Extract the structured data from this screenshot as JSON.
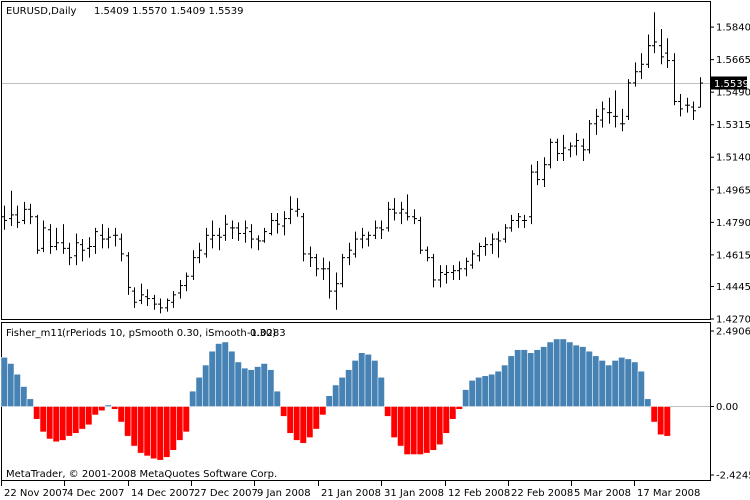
{
  "price_panel": {
    "symbol_label": "EURUSD,Daily",
    "ohlc_text": "1.5409 1.5570 1.5409 1.5539",
    "current_price_label": "1.5539"
  },
  "indicator_panel": {
    "title": "Fisher_m11",
    "params": "(rPeriods 10, pSmooth 0.30, iSmooth 0.30)",
    "value": "-1.0283"
  },
  "footer": {
    "copyright": "MetaTrader, © 2001-2008 MetaQuotes Software Corp."
  },
  "chart_data": [
    {
      "type": "ohlc",
      "symbol": "EURUSD",
      "timeframe": "Daily",
      "ylim": [
        1.427,
        1.5975
      ],
      "y_ticks": [
        "1.5840",
        "1.5665",
        "1.5490",
        "1.5315",
        "1.5140",
        "1.4965",
        "1.4790",
        "1.4615",
        "1.4445",
        "1.4270"
      ],
      "current_price": 1.5539,
      "colors": {
        "bars": "#000000",
        "current_price_line": "#c0c0c0"
      },
      "bars": [
        [
          1.482,
          1.488,
          1.475,
          1.48
        ],
        [
          1.481,
          1.496,
          1.477,
          1.483
        ],
        [
          1.483,
          1.488,
          1.476,
          1.479
        ],
        [
          1.48,
          1.49,
          1.478,
          1.486
        ],
        [
          1.486,
          1.489,
          1.478,
          1.482
        ],
        [
          1.482,
          1.483,
          1.462,
          1.464
        ],
        [
          1.465,
          1.48,
          1.463,
          1.476
        ],
        [
          1.475,
          1.478,
          1.462,
          1.466
        ],
        [
          1.466,
          1.476,
          1.464,
          1.468
        ],
        [
          1.468,
          1.478,
          1.462,
          1.465
        ],
        [
          1.465,
          1.468,
          1.456,
          1.46
        ],
        [
          1.461,
          1.473,
          1.456,
          1.468
        ],
        [
          1.467,
          1.47,
          1.458,
          1.464
        ],
        [
          1.465,
          1.471,
          1.46,
          1.466
        ],
        [
          1.466,
          1.476,
          1.462,
          1.474
        ],
        [
          1.472,
          1.478,
          1.465,
          1.47
        ],
        [
          1.47,
          1.476,
          1.465,
          1.471
        ],
        [
          1.472,
          1.476,
          1.466,
          1.472
        ],
        [
          1.47,
          1.473,
          1.458,
          1.462
        ],
        [
          1.461,
          1.463,
          1.44,
          1.444
        ],
        [
          1.442,
          1.444,
          1.433,
          1.436
        ],
        [
          1.437,
          1.446,
          1.435,
          1.44
        ],
        [
          1.439,
          1.443,
          1.434,
          1.438
        ],
        [
          1.438,
          1.44,
          1.432,
          1.435
        ],
        [
          1.435,
          1.438,
          1.43,
          1.433
        ],
        [
          1.433,
          1.438,
          1.431,
          1.437
        ],
        [
          1.436,
          1.442,
          1.433,
          1.44
        ],
        [
          1.441,
          1.448,
          1.438,
          1.445
        ],
        [
          1.445,
          1.452,
          1.442,
          1.45
        ],
        [
          1.45,
          1.464,
          1.448,
          1.46
        ],
        [
          1.46,
          1.468,
          1.457,
          1.464
        ],
        [
          1.462,
          1.476,
          1.46,
          1.472
        ],
        [
          1.47,
          1.48,
          1.465,
          1.472
        ],
        [
          1.472,
          1.476,
          1.464,
          1.471
        ],
        [
          1.472,
          1.483,
          1.469,
          1.478
        ],
        [
          1.476,
          1.48,
          1.47,
          1.476
        ],
        [
          1.476,
          1.479,
          1.469,
          1.473
        ],
        [
          1.473,
          1.48,
          1.468,
          1.476
        ],
        [
          1.474,
          1.478,
          1.465,
          1.47
        ],
        [
          1.47,
          1.472,
          1.464,
          1.469
        ],
        [
          1.469,
          1.476,
          1.468,
          1.474
        ],
        [
          1.473,
          1.484,
          1.472,
          1.48
        ],
        [
          1.48,
          1.484,
          1.473,
          1.478
        ],
        [
          1.477,
          1.485,
          1.472,
          1.481
        ],
        [
          1.481,
          1.493,
          1.478,
          1.486
        ],
        [
          1.485,
          1.492,
          1.482,
          1.486
        ],
        [
          1.482,
          1.484,
          1.458,
          1.462
        ],
        [
          1.462,
          1.466,
          1.455,
          1.46
        ],
        [
          1.46,
          1.462,
          1.45,
          1.454
        ],
        [
          1.454,
          1.46,
          1.448,
          1.454
        ],
        [
          1.454,
          1.458,
          1.438,
          1.442
        ],
        [
          1.442,
          1.452,
          1.432,
          1.446
        ],
        [
          1.446,
          1.462,
          1.444,
          1.46
        ],
        [
          1.46,
          1.468,
          1.456,
          1.464
        ],
        [
          1.462,
          1.474,
          1.46,
          1.47
        ],
        [
          1.47,
          1.476,
          1.465,
          1.472
        ],
        [
          1.47,
          1.474,
          1.466,
          1.472
        ],
        [
          1.472,
          1.48,
          1.47,
          1.476
        ],
        [
          1.476,
          1.48,
          1.47,
          1.475
        ],
        [
          1.476,
          1.49,
          1.474,
          1.486
        ],
        [
          1.486,
          1.492,
          1.48,
          1.484
        ],
        [
          1.484,
          1.49,
          1.478,
          1.486
        ],
        [
          1.484,
          1.494,
          1.48,
          1.482
        ],
        [
          1.482,
          1.486,
          1.478,
          1.481
        ],
        [
          1.48,
          1.482,
          1.462,
          1.464
        ],
        [
          1.464,
          1.466,
          1.458,
          1.46
        ],
        [
          1.46,
          1.462,
          1.444,
          1.448
        ],
        [
          1.448,
          1.456,
          1.444,
          1.452
        ],
        [
          1.451,
          1.456,
          1.446,
          1.452
        ],
        [
          1.452,
          1.456,
          1.448,
          1.453
        ],
        [
          1.453,
          1.458,
          1.448,
          1.454
        ],
        [
          1.454,
          1.46,
          1.45,
          1.458
        ],
        [
          1.456,
          1.464,
          1.454,
          1.462
        ],
        [
          1.461,
          1.468,
          1.458,
          1.466
        ],
        [
          1.466,
          1.471,
          1.461,
          1.467
        ],
        [
          1.467,
          1.473,
          1.462,
          1.47
        ],
        [
          1.47,
          1.474,
          1.46,
          1.469
        ],
        [
          1.47,
          1.478,
          1.468,
          1.476
        ],
        [
          1.476,
          1.483,
          1.474,
          1.48
        ],
        [
          1.48,
          1.484,
          1.476,
          1.482
        ],
        [
          1.48,
          1.483,
          1.476,
          1.48
        ],
        [
          1.482,
          1.51,
          1.478,
          1.506
        ],
        [
          1.506,
          1.512,
          1.499,
          1.502
        ],
        [
          1.502,
          1.514,
          1.498,
          1.51
        ],
        [
          1.51,
          1.524,
          1.508,
          1.522
        ],
        [
          1.522,
          1.524,
          1.512,
          1.516
        ],
        [
          1.516,
          1.526,
          1.512,
          1.519
        ],
        [
          1.518,
          1.522,
          1.514,
          1.52
        ],
        [
          1.52,
          1.527,
          1.515,
          1.523
        ],
        [
          1.52,
          1.524,
          1.512,
          1.518
        ],
        [
          1.518,
          1.534,
          1.516,
          1.532
        ],
        [
          1.532,
          1.54,
          1.526,
          1.536
        ],
        [
          1.534,
          1.544,
          1.53,
          1.54
        ],
        [
          1.538,
          1.546,
          1.532,
          1.538
        ],
        [
          1.536,
          1.55,
          1.53,
          1.536
        ],
        [
          1.532,
          1.54,
          1.528,
          1.532
        ],
        [
          1.536,
          1.556,
          1.534,
          1.554
        ],
        [
          1.554,
          1.565,
          1.552,
          1.56
        ],
        [
          1.56,
          1.57,
          1.556,
          1.564
        ],
        [
          1.564,
          1.58,
          1.562,
          1.574
        ],
        [
          1.574,
          1.592,
          1.57,
          1.576
        ],
        [
          1.574,
          1.583,
          1.564,
          1.568
        ],
        [
          1.57,
          1.578,
          1.562,
          1.566
        ],
        [
          1.566,
          1.57,
          1.542,
          1.544
        ],
        [
          1.544,
          1.548,
          1.536,
          1.54
        ],
        [
          1.542,
          1.546,
          1.538,
          1.542
        ],
        [
          1.541,
          1.544,
          1.534,
          1.539
        ],
        [
          1.5409,
          1.557,
          1.5409,
          1.5539
        ]
      ]
    },
    {
      "type": "histogram",
      "name": "Fisher_m11",
      "ylim": [
        -2.4245,
        2.4906
      ],
      "y_ticks": [
        "2.4906",
        "0.00",
        "-2.4245"
      ],
      "colors": {
        "positive": "#4682b4",
        "negative": "#ff0000"
      },
      "values": [
        1.6,
        1.4,
        1.05,
        0.65,
        0.25,
        -0.45,
        -0.9,
        -1.15,
        -1.25,
        -1.2,
        -1.05,
        -0.95,
        -0.8,
        -0.65,
        -0.3,
        -0.15,
        0.05,
        -0.1,
        -0.55,
        -1.05,
        -1.4,
        -1.65,
        -1.75,
        -1.85,
        -1.9,
        -1.8,
        -1.55,
        -1.2,
        -0.9,
        0.5,
        0.95,
        1.35,
        1.8,
        2.05,
        2.1,
        1.8,
        1.45,
        1.25,
        1.2,
        1.3,
        1.4,
        1.2,
        0.5,
        -0.35,
        -0.95,
        -1.2,
        -1.3,
        -1.1,
        -0.8,
        -0.3,
        0.35,
        0.7,
        0.95,
        1.2,
        1.5,
        1.75,
        1.7,
        1.5,
        0.95,
        -0.35,
        -1.1,
        -1.4,
        -1.7,
        -1.7,
        -1.7,
        -1.65,
        -1.55,
        -1.35,
        -0.95,
        -0.45,
        -0.1,
        0.55,
        0.85,
        0.95,
        1.0,
        1.05,
        1.15,
        1.35,
        1.65,
        1.85,
        1.85,
        1.75,
        1.85,
        1.95,
        2.1,
        2.2,
        2.2,
        2.1,
        2.0,
        1.95,
        1.8,
        1.65,
        1.5,
        1.35,
        1.5,
        1.6,
        1.55,
        1.45,
        1.15,
        0.25,
        -0.55,
        -1.0,
        -1.05
      ]
    }
  ],
  "x_axis": {
    "labels": [
      "22 Nov 2007",
      "4 Dec 2007",
      "14 Dec 2007",
      "27 Dec 2007",
      "9 Jan 2008",
      "21 Jan 2008",
      "31 Jan 2008",
      "12 Feb 2008",
      "22 Feb 2008",
      "5 Mar 2008",
      "17 Mar 2008"
    ]
  }
}
